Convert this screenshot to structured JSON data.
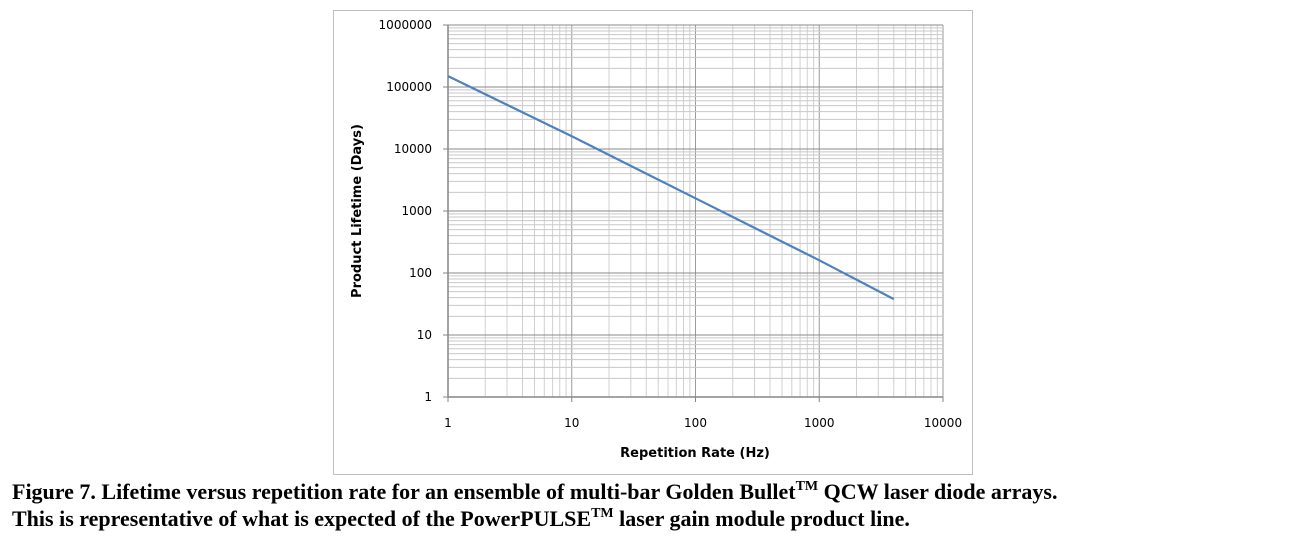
{
  "chart_data": {
    "type": "line",
    "title": "",
    "xlabel": "Repetition Rate (Hz)",
    "ylabel": "Product Lifetime (Days)",
    "xscale": "log",
    "yscale": "log",
    "xlim": [
      1,
      10000
    ],
    "ylim": [
      1,
      1000000
    ],
    "x_ticks": [
      "1",
      "10",
      "100",
      "1000",
      "10000"
    ],
    "y_ticks": [
      "1",
      "10",
      "100",
      "1000",
      "10000",
      "100000",
      "1000000"
    ],
    "grid": true,
    "legend": "none",
    "color": "#4f81bd",
    "series": [
      {
        "name": "Lifetime",
        "x": [
          1,
          10,
          100,
          1000,
          4000
        ],
        "y": [
          150000,
          16000,
          1600,
          160,
          38
        ]
      }
    ]
  },
  "caption": {
    "line1_a": "Figure 7.  Lifetime versus repetition rate for an ensemble of multi-bar Golden Bullet",
    "tm1": "TM",
    "line1_b": " QCW laser diode arrays.",
    "line2_a": "This is representative of what is expected of the PowerPULSE",
    "tm2": "TM",
    "line2_b": " laser gain module product line."
  }
}
